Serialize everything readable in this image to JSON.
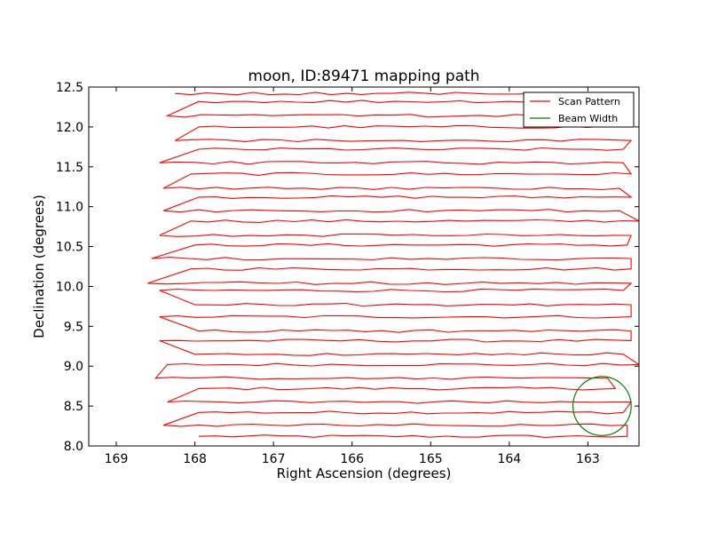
{
  "chart_data": {
    "type": "line",
    "title": "moon, ID:89471 mapping path",
    "xlabel": "Right Ascension (degrees)",
    "ylabel": "Declination (degrees)",
    "xlim": [
      169.35,
      162.35
    ],
    "ylim": [
      8.0,
      12.5
    ],
    "x_inverted": true,
    "xticks": [
      169,
      168,
      167,
      166,
      165,
      164,
      163
    ],
    "xtick_labels": [
      "169",
      "168",
      "167",
      "166",
      "165",
      "164",
      "163"
    ],
    "yticks": [
      8.0,
      8.5,
      9.0,
      9.5,
      10.0,
      10.5,
      11.0,
      11.5,
      12.0,
      12.5
    ],
    "ytick_labels": [
      "8.0",
      "8.5",
      "9.0",
      "9.5",
      "10.0",
      "10.5",
      "11.0",
      "11.5",
      "12.0",
      "12.5"
    ],
    "grid": false,
    "legend": {
      "placement": "top-right",
      "entries": [
        "Scan Pattern",
        "Beam Width"
      ]
    },
    "series": [
      {
        "name": "Scan Pattern",
        "kind": "raster-scan",
        "color": "#ff0000",
        "rows": [
          {
            "dec": 8.12,
            "ra_start": 167.95,
            "ra_end": 162.5
          },
          {
            "dec": 8.26,
            "ra_start": 168.4,
            "ra_end": 162.5
          },
          {
            "dec": 8.42,
            "ra_start": 167.95,
            "ra_end": 162.55
          },
          {
            "dec": 8.55,
            "ra_start": 168.35,
            "ra_end": 162.45
          },
          {
            "dec": 8.72,
            "ra_start": 167.95,
            "ra_end": 162.65
          },
          {
            "dec": 8.85,
            "ra_start": 168.5,
            "ra_end": 162.75
          },
          {
            "dec": 9.02,
            "ra_start": 168.35,
            "ra_end": 162.35
          },
          {
            "dec": 9.15,
            "ra_start": 168.0,
            "ra_end": 162.55
          },
          {
            "dec": 9.32,
            "ra_start": 168.45,
            "ra_end": 162.45
          },
          {
            "dec": 9.44,
            "ra_start": 167.95,
            "ra_end": 162.45
          },
          {
            "dec": 9.62,
            "ra_start": 168.45,
            "ra_end": 162.45
          },
          {
            "dec": 9.77,
            "ra_start": 168.0,
            "ra_end": 162.45
          },
          {
            "dec": 9.95,
            "ra_start": 168.45,
            "ra_end": 162.55
          },
          {
            "dec": 10.04,
            "ra_start": 168.6,
            "ra_end": 162.45
          },
          {
            "dec": 10.22,
            "ra_start": 168.05,
            "ra_end": 162.45
          },
          {
            "dec": 10.35,
            "ra_start": 168.55,
            "ra_end": 162.45
          },
          {
            "dec": 10.52,
            "ra_start": 168.0,
            "ra_end": 162.5
          },
          {
            "dec": 10.64,
            "ra_start": 168.45,
            "ra_end": 162.45
          },
          {
            "dec": 10.82,
            "ra_start": 168.05,
            "ra_end": 162.35
          },
          {
            "dec": 10.95,
            "ra_start": 168.4,
            "ra_end": 162.6
          },
          {
            "dec": 11.12,
            "ra_start": 167.95,
            "ra_end": 162.45
          },
          {
            "dec": 11.23,
            "ra_start": 168.4,
            "ra_end": 162.6
          },
          {
            "dec": 11.41,
            "ra_start": 168.05,
            "ra_end": 162.45
          },
          {
            "dec": 11.55,
            "ra_start": 168.45,
            "ra_end": 162.55
          },
          {
            "dec": 11.72,
            "ra_start": 167.95,
            "ra_end": 162.55
          },
          {
            "dec": 11.83,
            "ra_start": 168.25,
            "ra_end": 162.45
          },
          {
            "dec": 12.0,
            "ra_start": 167.95,
            "ra_end": 162.6
          },
          {
            "dec": 12.14,
            "ra_start": 168.35,
            "ra_end": 162.6
          },
          {
            "dec": 12.32,
            "ra_start": 167.95,
            "ra_end": 162.55
          },
          {
            "dec": 12.42,
            "ra_start": 168.25,
            "ra_end": 163.1
          }
        ]
      },
      {
        "name": "Beam Width",
        "kind": "circle",
        "color": "#008000",
        "center_ra": 162.82,
        "center_dec": 8.5,
        "radius_ra": 0.37,
        "radius_dec": 0.37
      }
    ]
  }
}
